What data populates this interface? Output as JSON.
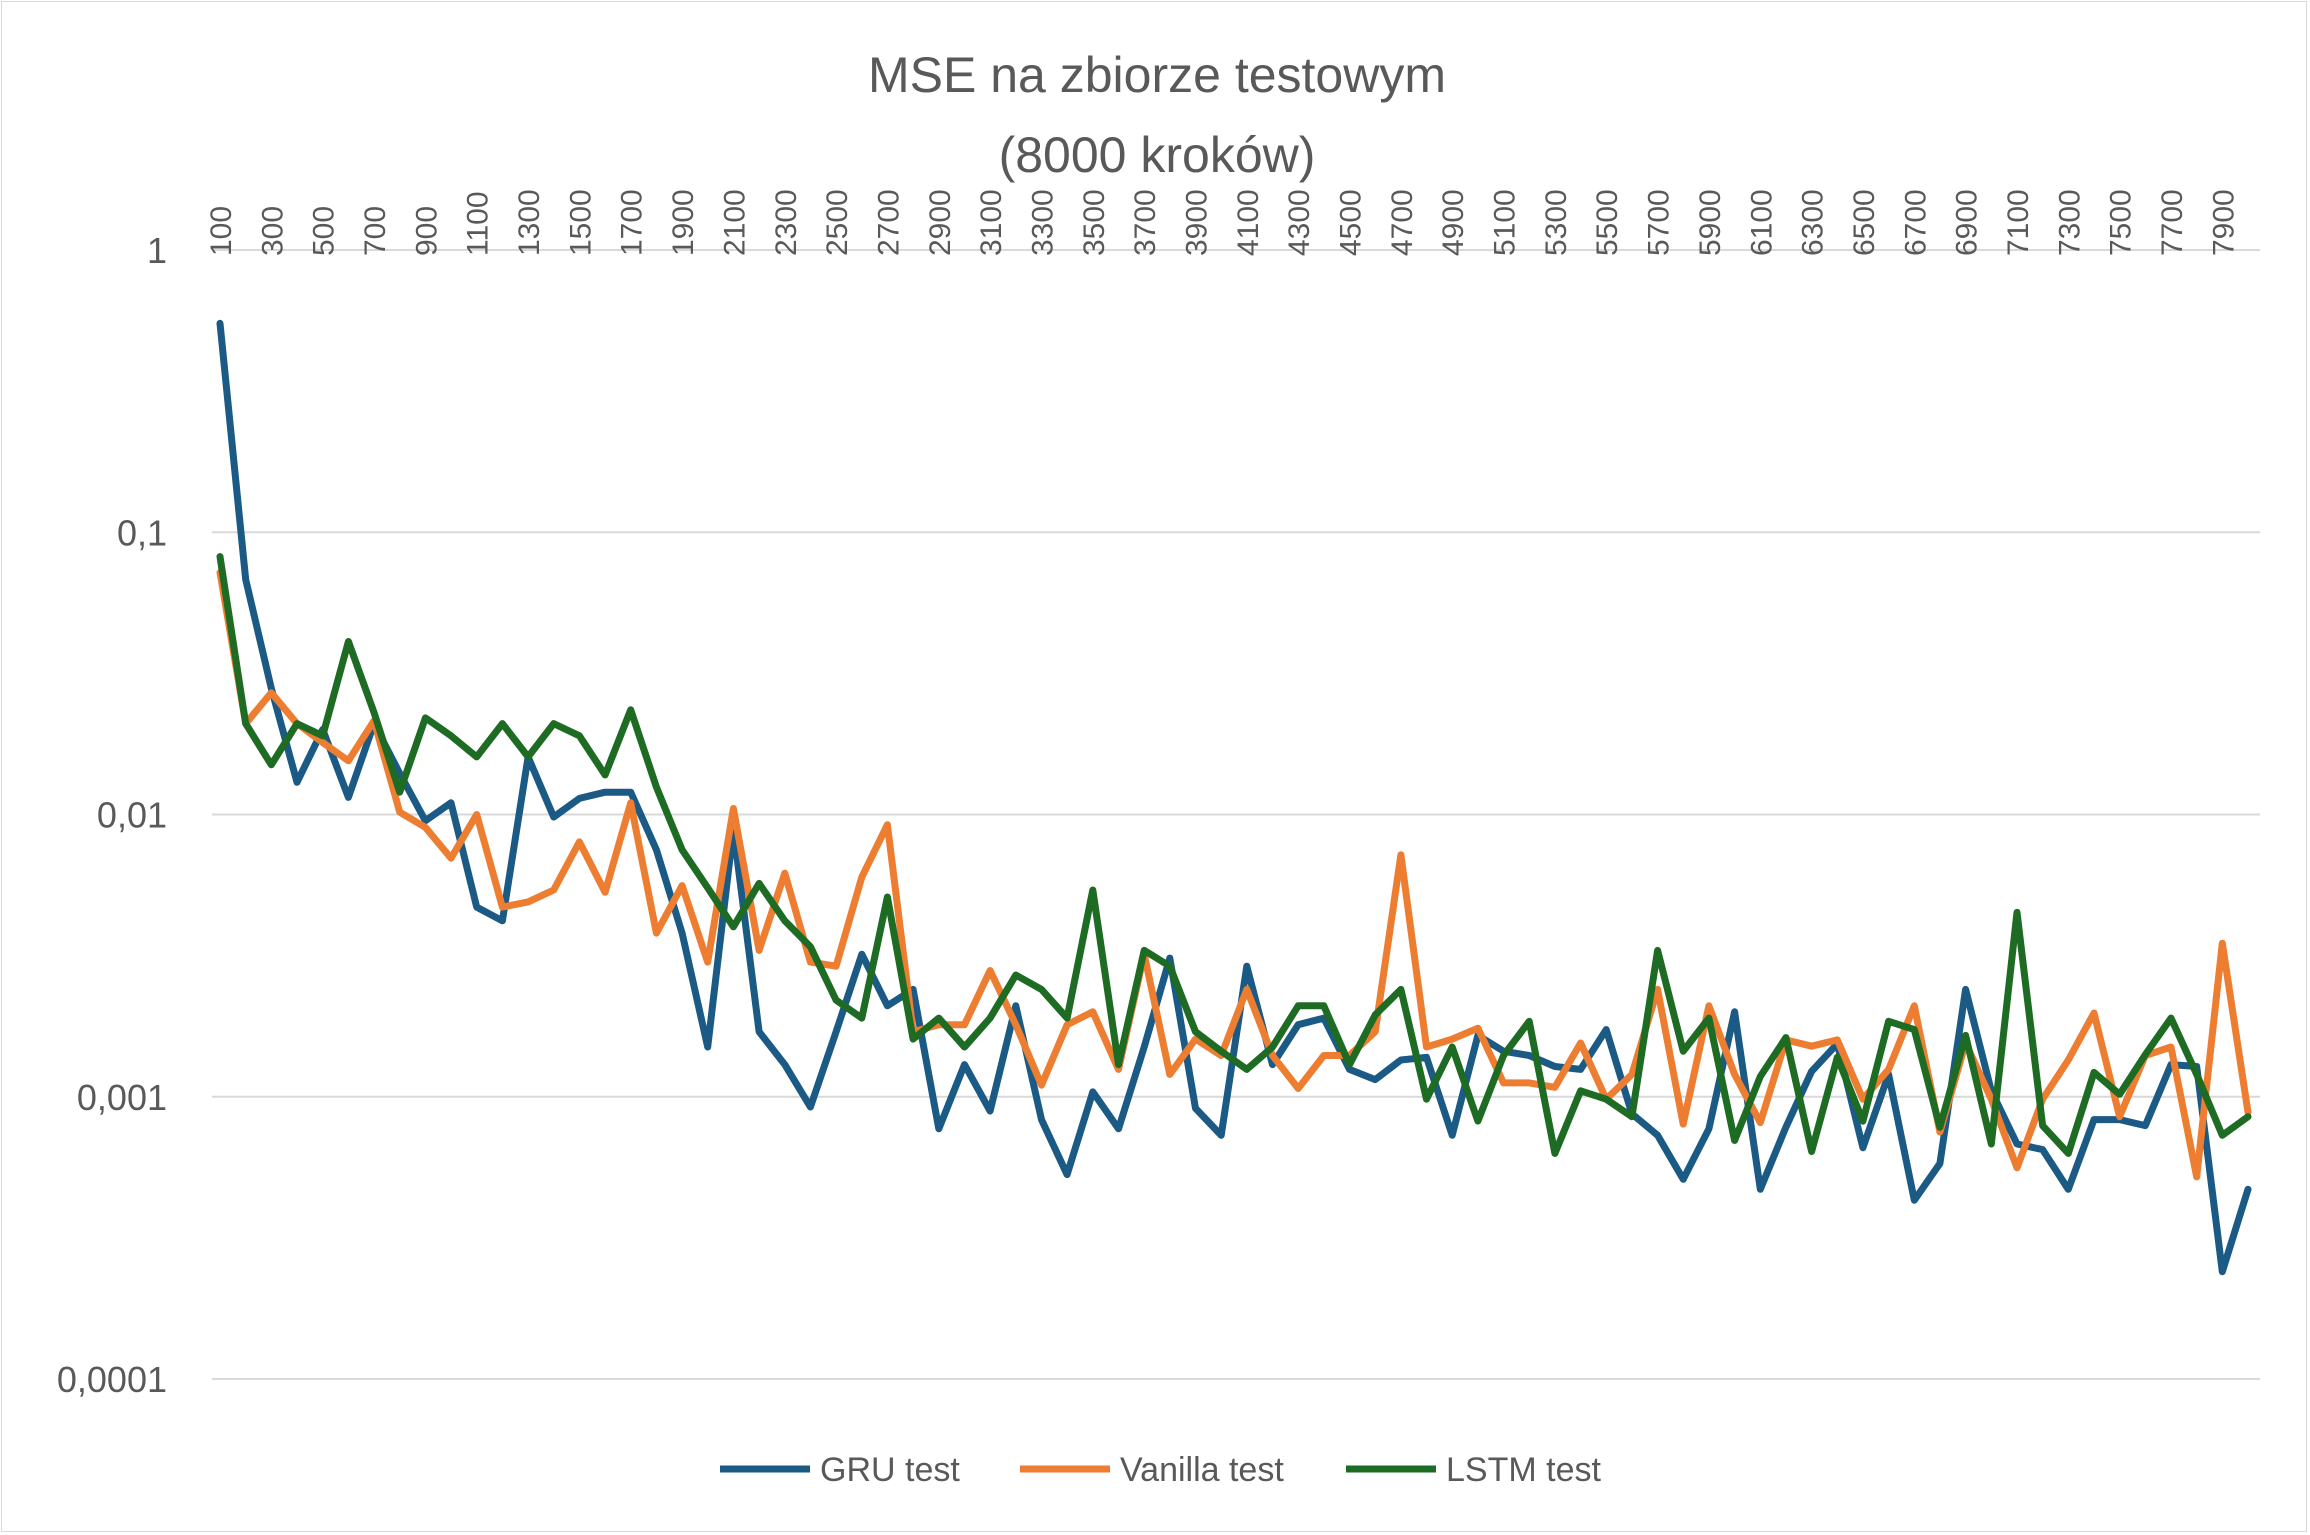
{
  "chart_data": {
    "type": "line",
    "title": "MSE na zbiorze testowym",
    "subtitle": "(8000 kroków)",
    "xlabel": "",
    "ylabel": "",
    "y_scale": "log",
    "ylim": [
      0.0001,
      1
    ],
    "y_ticks": [
      "1",
      "0,1",
      "0,01",
      "0,001",
      "0,0001"
    ],
    "y_tick_values": [
      1,
      0.1,
      0.01,
      0.001,
      0.0001
    ],
    "x": [
      100,
      200,
      300,
      400,
      500,
      600,
      700,
      800,
      900,
      1000,
      1100,
      1200,
      1300,
      1400,
      1500,
      1600,
      1700,
      1800,
      1900,
      2000,
      2100,
      2200,
      2300,
      2400,
      2500,
      2600,
      2700,
      2800,
      2900,
      3000,
      3100,
      3200,
      3300,
      3400,
      3500,
      3600,
      3700,
      3800,
      3900,
      4000,
      4100,
      4200,
      4300,
      4400,
      4500,
      4600,
      4700,
      4800,
      4900,
      5000,
      5100,
      5200,
      5300,
      5400,
      5500,
      5600,
      5700,
      5800,
      5900,
      6000,
      6100,
      6200,
      6300,
      6400,
      6500,
      6600,
      6700,
      6800,
      6900,
      7000,
      7100,
      7200,
      7300,
      7400,
      7500,
      7600,
      7700,
      7800,
      7900,
      8000
    ],
    "x_tick_labels": [
      "100",
      "300",
      "500",
      "700",
      "900",
      "1100",
      "1300",
      "1500",
      "1700",
      "1900",
      "2100",
      "2300",
      "2500",
      "2700",
      "2900",
      "3100",
      "3300",
      "3500",
      "3700",
      "3900",
      "4100",
      "4300",
      "4500",
      "4700",
      "4900",
      "5100",
      "5300",
      "5500",
      "5700",
      "5900",
      "6100",
      "6300",
      "6500",
      "6700",
      "6900",
      "7100",
      "7300",
      "7500",
      "7700",
      "7900"
    ],
    "grid": true,
    "legend_position": "bottom",
    "series": [
      {
        "name": "GRU test",
        "color": "#1a5a85",
        "values": [
          0.55,
          0.068,
          0.028,
          0.013,
          0.02,
          0.0115,
          0.021,
          0.014,
          0.0095,
          0.011,
          0.0047,
          0.0042,
          0.016,
          0.0098,
          0.0114,
          0.012,
          0.012,
          0.0075,
          0.0038,
          0.0015,
          0.0089,
          0.0017,
          0.0013,
          0.00092,
          0.0017,
          0.0032,
          0.0021,
          0.0024,
          0.00077,
          0.0013,
          0.00089,
          0.0021,
          0.00083,
          0.00053,
          0.00104,
          0.00077,
          0.0015,
          0.0031,
          0.00091,
          0.00073,
          0.0029,
          0.0013,
          0.0018,
          0.0019,
          0.00125,
          0.00115,
          0.00135,
          0.00138,
          0.00073,
          0.00165,
          0.00145,
          0.0014,
          0.00128,
          0.00125,
          0.00173,
          0.00087,
          0.00073,
          0.00051,
          0.00077,
          0.002,
          0.00047,
          0.00078,
          0.00123,
          0.00154,
          0.00066,
          0.0012,
          0.00043,
          0.00058,
          0.0024,
          0.00105,
          0.00068,
          0.00065,
          0.00047,
          0.00083,
          0.00083,
          0.00079,
          0.0013,
          0.00128,
          0.00024,
          0.00047
        ]
      },
      {
        "name": "Vanilla test",
        "color": "#ed7d31",
        "values": [
          0.072,
          0.021,
          0.027,
          0.021,
          0.018,
          0.0155,
          0.0215,
          0.0102,
          0.009,
          0.007,
          0.01,
          0.0047,
          0.0049,
          0.0054,
          0.008,
          0.0053,
          0.011,
          0.0038,
          0.0056,
          0.003,
          0.0105,
          0.0033,
          0.0062,
          0.003,
          0.0029,
          0.006,
          0.0092,
          0.0017,
          0.0018,
          0.0018,
          0.0028,
          0.0018,
          0.0011,
          0.0018,
          0.002,
          0.00125,
          0.0032,
          0.0012,
          0.0016,
          0.0014,
          0.0024,
          0.0014,
          0.00107,
          0.0014,
          0.0014,
          0.0017,
          0.0072,
          0.0015,
          0.0016,
          0.00175,
          0.00112,
          0.00112,
          0.00108,
          0.00155,
          0.00098,
          0.0012,
          0.0024,
          0.0008,
          0.0021,
          0.0012,
          0.00081,
          0.00159,
          0.00151,
          0.00159,
          0.00098,
          0.00125,
          0.0021,
          0.00075,
          0.00155,
          0.00098,
          0.00056,
          0.00098,
          0.00135,
          0.00198,
          0.00085,
          0.0014,
          0.0015,
          0.00052,
          0.0035,
          0.00088
        ]
      },
      {
        "name": "LSTM test",
        "color": "#1e6b23",
        "values": [
          0.082,
          0.021,
          0.015,
          0.021,
          0.019,
          0.041,
          0.023,
          0.012,
          0.022,
          0.019,
          0.016,
          0.021,
          0.016,
          0.021,
          0.019,
          0.0138,
          0.0235,
          0.0125,
          0.0075,
          0.0055,
          0.004,
          0.0057,
          0.0042,
          0.0034,
          0.0022,
          0.0019,
          0.0051,
          0.0016,
          0.0019,
          0.0015,
          0.0019,
          0.0027,
          0.0024,
          0.0019,
          0.0054,
          0.0013,
          0.0033,
          0.0029,
          0.0017,
          0.00145,
          0.00125,
          0.0015,
          0.0021,
          0.0021,
          0.0013,
          0.00195,
          0.0024,
          0.00098,
          0.0015,
          0.00082,
          0.0014,
          0.00185,
          0.00063,
          0.00105,
          0.00098,
          0.00085,
          0.0033,
          0.00145,
          0.0019,
          0.0007,
          0.00118,
          0.00162,
          0.00064,
          0.00138,
          0.00082,
          0.00185,
          0.00173,
          0.00078,
          0.00165,
          0.00068,
          0.0045,
          0.00079,
          0.00063,
          0.00122,
          0.00102,
          0.00141,
          0.0019,
          0.0012,
          0.00073,
          0.00085
        ]
      }
    ]
  }
}
